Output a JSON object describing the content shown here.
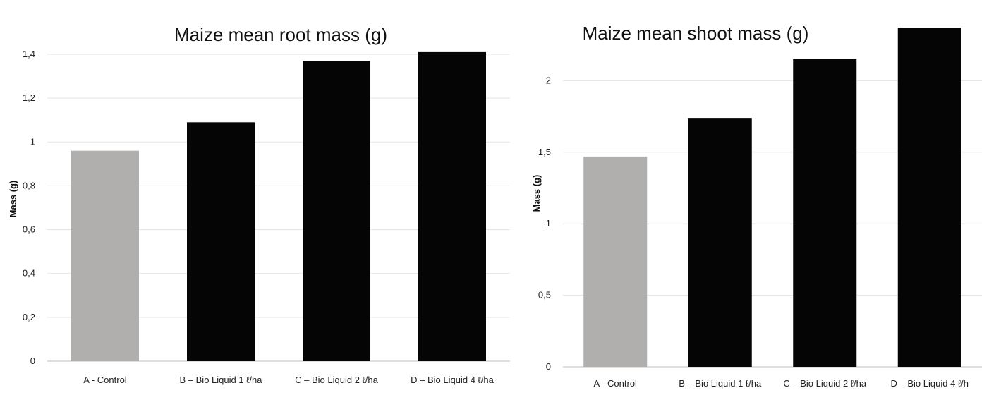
{
  "chart_data": [
    {
      "type": "bar",
      "title": "Maize mean root mass (g)",
      "xlabel": "",
      "ylabel": "Mass (g)",
      "categories": [
        "A - Control",
        "B – Bio Liquid 1 ℓ/ha",
        "C – Bio Liquid 2 ℓ/ha",
        "D – Bio Liquid 4 ℓ/ha"
      ],
      "values": [
        0.96,
        1.09,
        1.37,
        1.41
      ],
      "ylim": [
        0,
        1.4
      ],
      "yticks": [
        0,
        0.2,
        0.4,
        0.6,
        0.8,
        1,
        1.2,
        1.4
      ],
      "ytick_labels": [
        "0",
        "0,2",
        "0,4",
        "0,6",
        "0,8",
        "1",
        "1,2",
        "1,4"
      ],
      "bar_colors": [
        "#b1aeae",
        "#050505",
        "#050505",
        "#050505"
      ],
      "grid": true,
      "legend": "none"
    },
    {
      "type": "bar",
      "title": "Maize mean shoot mass (g)",
      "xlabel": "",
      "ylabel": "Mass (g)",
      "categories": [
        "A - Control",
        "B – Bio Liquid 1 ℓ/ha",
        "C – Bio Liquid 2 ℓ/ha",
        "D – Bio Liquid 4 ℓ/h"
      ],
      "values": [
        1.47,
        1.74,
        2.15,
        2.37
      ],
      "ylim": [
        0,
        2.5
      ],
      "yticks": [
        0,
        0.5,
        1,
        1.5,
        2
      ],
      "ytick_labels": [
        "0",
        "0,5",
        "1",
        "1,5",
        "2"
      ],
      "bar_colors": [
        "#b1aeae",
        "#050505",
        "#050505",
        "#050505"
      ],
      "grid": true,
      "legend": "none"
    }
  ]
}
